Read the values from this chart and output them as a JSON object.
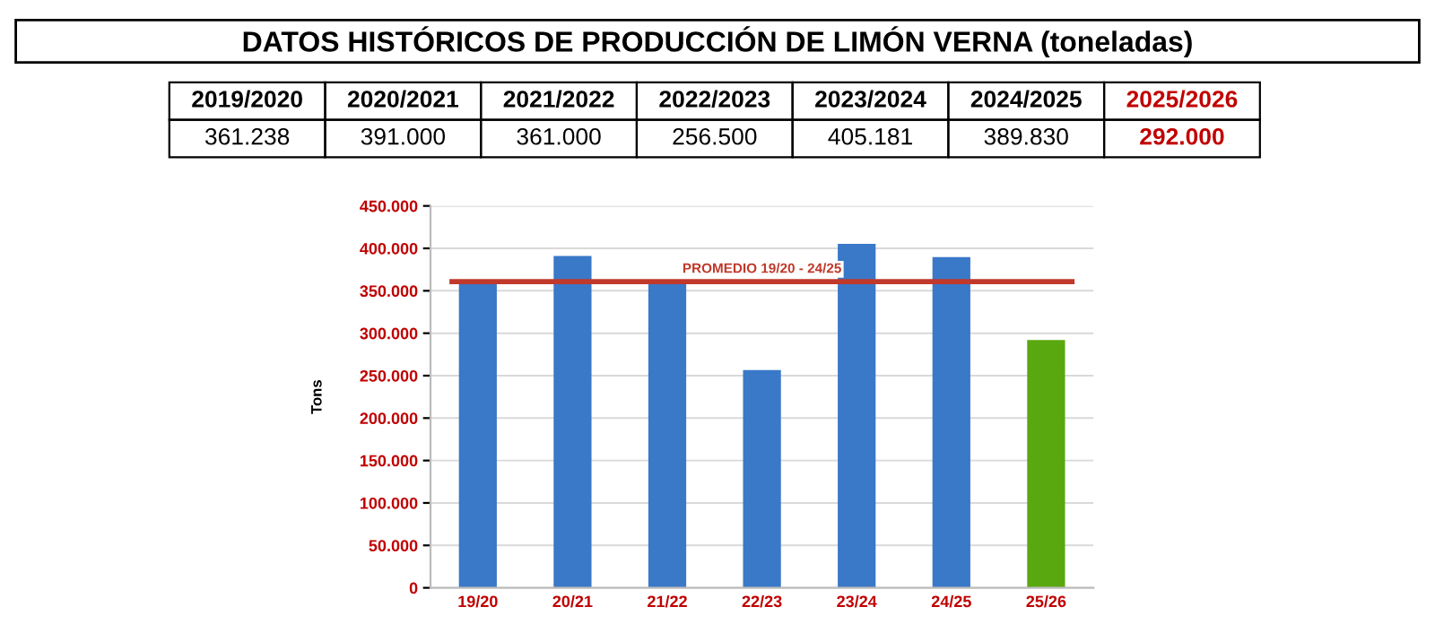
{
  "chart_data": {
    "type": "bar",
    "title": "DATOS HISTÓRICOS DE PRODUCCIÓN DE LIMÓN VERNA (toneladas)",
    "annotations": [
      "2019/2020",
      "2020/2021",
      "2021/2022",
      "2022/2023",
      "2023/2024",
      "2024/2025",
      "2025/2026",
      "361.238",
      "391.000",
      "361.000",
      "256.500",
      "405.181",
      "389.830",
      "292.000"
    ],
    "categories": [
      "19/20",
      "20/21",
      "21/22",
      "22/23",
      "23/24",
      "24/25",
      "25/26"
    ],
    "values": [
      361238,
      391000,
      361000,
      256500,
      405181,
      389830,
      292000
    ],
    "colors": [
      "#3a78c8",
      "#3a78c8",
      "#3a78c8",
      "#3a78c8",
      "#3a78c8",
      "#3a78c8",
      "#5aa80f"
    ],
    "ylabel": "Tons",
    "ylim": [
      0,
      450000
    ],
    "yticks": [
      {
        "value": 0,
        "label": "0"
      },
      {
        "value": 50000,
        "label": "50.000"
      },
      {
        "value": 100000,
        "label": "100.000"
      },
      {
        "value": 150000,
        "label": "150.000"
      },
      {
        "value": 200000,
        "label": "200.000"
      },
      {
        "value": 250000,
        "label": "250.000"
      },
      {
        "value": 300000,
        "label": "300.000"
      },
      {
        "value": 350000,
        "label": "350.000"
      },
      {
        "value": 400000,
        "label": "400.000"
      },
      {
        "value": 450000,
        "label": "450.000"
      }
    ],
    "ref_lines": [
      {
        "axis": "y",
        "value": 360800,
        "label": "PROMEDIO 19/20 - 24/25",
        "color": "#c0392b"
      }
    ],
    "grid": "y"
  }
}
